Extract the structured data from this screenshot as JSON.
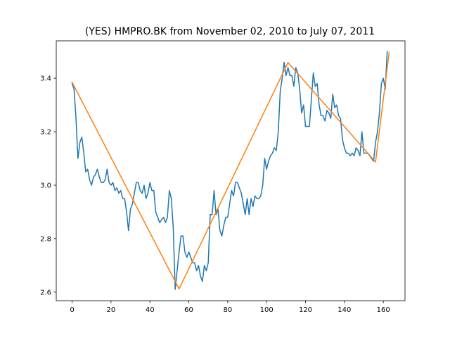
{
  "chart_data": {
    "type": "line",
    "title": "(YES) HMPRO.BK from November 02, 2010 to July 07, 2011",
    "xlabel": "",
    "ylabel": "",
    "xlim": [
      -8.15,
      171.15
    ],
    "ylim": [
      2.568,
      3.54
    ],
    "x_ticks": [
      0,
      20,
      40,
      60,
      80,
      100,
      120,
      140,
      160
    ],
    "y_ticks": [
      2.6,
      2.8,
      3.0,
      3.2,
      3.4
    ],
    "y_tick_labels": [
      "2.6",
      "2.8",
      "3.0",
      "3.2",
      "3.4"
    ],
    "grid": false,
    "legend": "none",
    "series": [
      {
        "color": "#1f77b4",
        "style": "line",
        "values": [
          3.38,
          3.36,
          3.25,
          3.1,
          3.16,
          3.18,
          3.12,
          3.05,
          3.06,
          3.02,
          3.0,
          3.03,
          3.04,
          3.06,
          3.03,
          3.01,
          3.01,
          3.02,
          3.06,
          3.01,
          3.0,
          3.01,
          2.98,
          2.99,
          2.97,
          2.98,
          2.95,
          2.95,
          2.9,
          2.83,
          2.91,
          2.93,
          2.97,
          3.01,
          3.01,
          2.98,
          2.97,
          3.0,
          2.95,
          2.97,
          3.01,
          2.98,
          2.98,
          2.9,
          2.88,
          2.86,
          2.87,
          2.88,
          2.86,
          2.88,
          2.98,
          2.95,
          2.84,
          2.61,
          2.68,
          2.75,
          2.81,
          2.81,
          2.75,
          2.73,
          2.75,
          2.73,
          2.71,
          2.71,
          2.68,
          2.7,
          2.66,
          2.64,
          2.7,
          2.68,
          2.71,
          2.89,
          2.89,
          2.98,
          2.89,
          2.91,
          2.83,
          2.81,
          2.85,
          2.88,
          2.88,
          2.93,
          2.98,
          2.96,
          3.01,
          3.01,
          2.99,
          2.97,
          2.93,
          2.89,
          2.95,
          2.89,
          2.95,
          2.92,
          2.96,
          2.95,
          2.95,
          2.96,
          3.0,
          3.1,
          3.06,
          3.09,
          3.11,
          3.12,
          3.14,
          3.13,
          3.2,
          3.35,
          3.4,
          3.46,
          3.41,
          3.44,
          3.41,
          3.41,
          3.37,
          3.44,
          3.42,
          3.36,
          3.27,
          3.3,
          3.22,
          3.22,
          3.22,
          3.32,
          3.42,
          3.37,
          3.38,
          3.3,
          3.26,
          3.26,
          3.24,
          3.28,
          3.27,
          3.25,
          3.34,
          3.29,
          3.3,
          3.26,
          3.25,
          3.17,
          3.14,
          3.12,
          3.12,
          3.11,
          3.12,
          3.11,
          3.14,
          3.13,
          3.11,
          3.2,
          3.12,
          3.12,
          3.12,
          3.11,
          3.1,
          3.09,
          3.16,
          3.2,
          3.27,
          3.38,
          3.4,
          3.36,
          3.5
        ]
      },
      {
        "color": "#ff7f0e",
        "style": "line",
        "points": [
          [
            0,
            3.385
          ],
          [
            55,
            2.612
          ],
          [
            111,
            3.459
          ],
          [
            156,
            3.087
          ],
          [
            163,
            3.497
          ]
        ]
      }
    ]
  }
}
